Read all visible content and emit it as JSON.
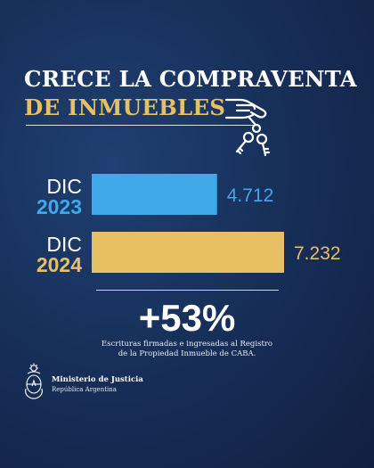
{
  "header": {
    "title_line1": "CRECE LA COMPRAVENTA",
    "title_line2": "DE INMUEBLES"
  },
  "chart_data": {
    "type": "bar",
    "orientation": "horizontal",
    "categories": [
      {
        "month": "DIC",
        "year": "2023"
      },
      {
        "month": "DIC",
        "year": "2024"
      }
    ],
    "values": [
      4712,
      7232
    ],
    "value_labels": [
      "4.712",
      "7.232"
    ],
    "colors": [
      "#3fa9e9",
      "#e8c064"
    ],
    "title": "",
    "xlabel": "",
    "ylabel": "",
    "grid": false
  },
  "summary": {
    "percentage": "+53%",
    "caption_line1": "Escrituras firmadas e ingresadas al Registro",
    "caption_line2": "de la Propiedad Inmueble de CABA."
  },
  "footer": {
    "org_name": "Ministerio de Justicia",
    "org_country": "República Argentina"
  },
  "icons": {
    "keys": "hand-holding-keys-icon",
    "emblem": "argentina-coat-of-arms-icon"
  }
}
